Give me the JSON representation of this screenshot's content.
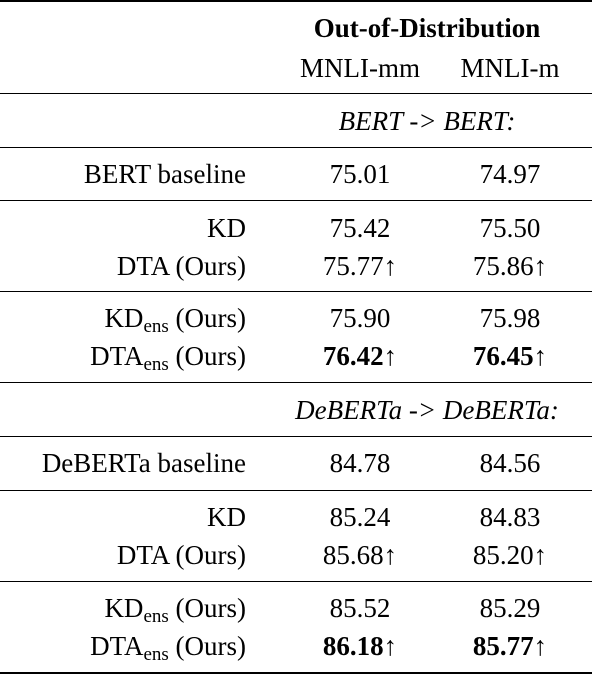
{
  "header": {
    "group_title": "Out-of-Distribution",
    "columns": [
      "MNLI-mm",
      "MNLI-m"
    ]
  },
  "sections": [
    {
      "title": "BERT -> BERT:",
      "groups": [
        [
          {
            "label": "BERT baseline",
            "sub": "",
            "suffix": "",
            "mm": "75.01",
            "m": "74.97",
            "bold": false
          }
        ],
        [
          {
            "label": "KD",
            "sub": "",
            "suffix": "",
            "mm": "75.42",
            "m": "75.50",
            "bold": false
          },
          {
            "label": "DTA (Ours)",
            "sub": "",
            "suffix": "",
            "mm": "75.77↑",
            "m": "75.86↑",
            "bold": false
          }
        ],
        [
          {
            "label": "KD",
            "sub": "ens",
            "suffix": " (Ours)",
            "mm": "75.90",
            "m": "75.98",
            "bold": false
          },
          {
            "label": "DTA",
            "sub": "ens",
            "suffix": " (Ours)",
            "mm": "76.42↑",
            "m": "76.45↑",
            "bold": true
          }
        ]
      ]
    },
    {
      "title": "DeBERTa -> DeBERTa:",
      "groups": [
        [
          {
            "label": "DeBERTa baseline",
            "sub": "",
            "suffix": "",
            "mm": "84.78",
            "m": "84.56",
            "bold": false
          }
        ],
        [
          {
            "label": "KD",
            "sub": "",
            "suffix": "",
            "mm": "85.24",
            "m": "84.83",
            "bold": false
          },
          {
            "label": "DTA (Ours)",
            "sub": "",
            "suffix": "",
            "mm": "85.68↑",
            "m": "85.20↑",
            "bold": false
          }
        ],
        [
          {
            "label": "KD",
            "sub": "ens",
            "suffix": " (Ours)",
            "mm": "85.52",
            "m": "85.29",
            "bold": false
          },
          {
            "label": "DTA",
            "sub": "ens",
            "suffix": " (Ours)",
            "mm": "86.18↑",
            "m": "85.77↑",
            "bold": true
          }
        ]
      ]
    }
  ]
}
